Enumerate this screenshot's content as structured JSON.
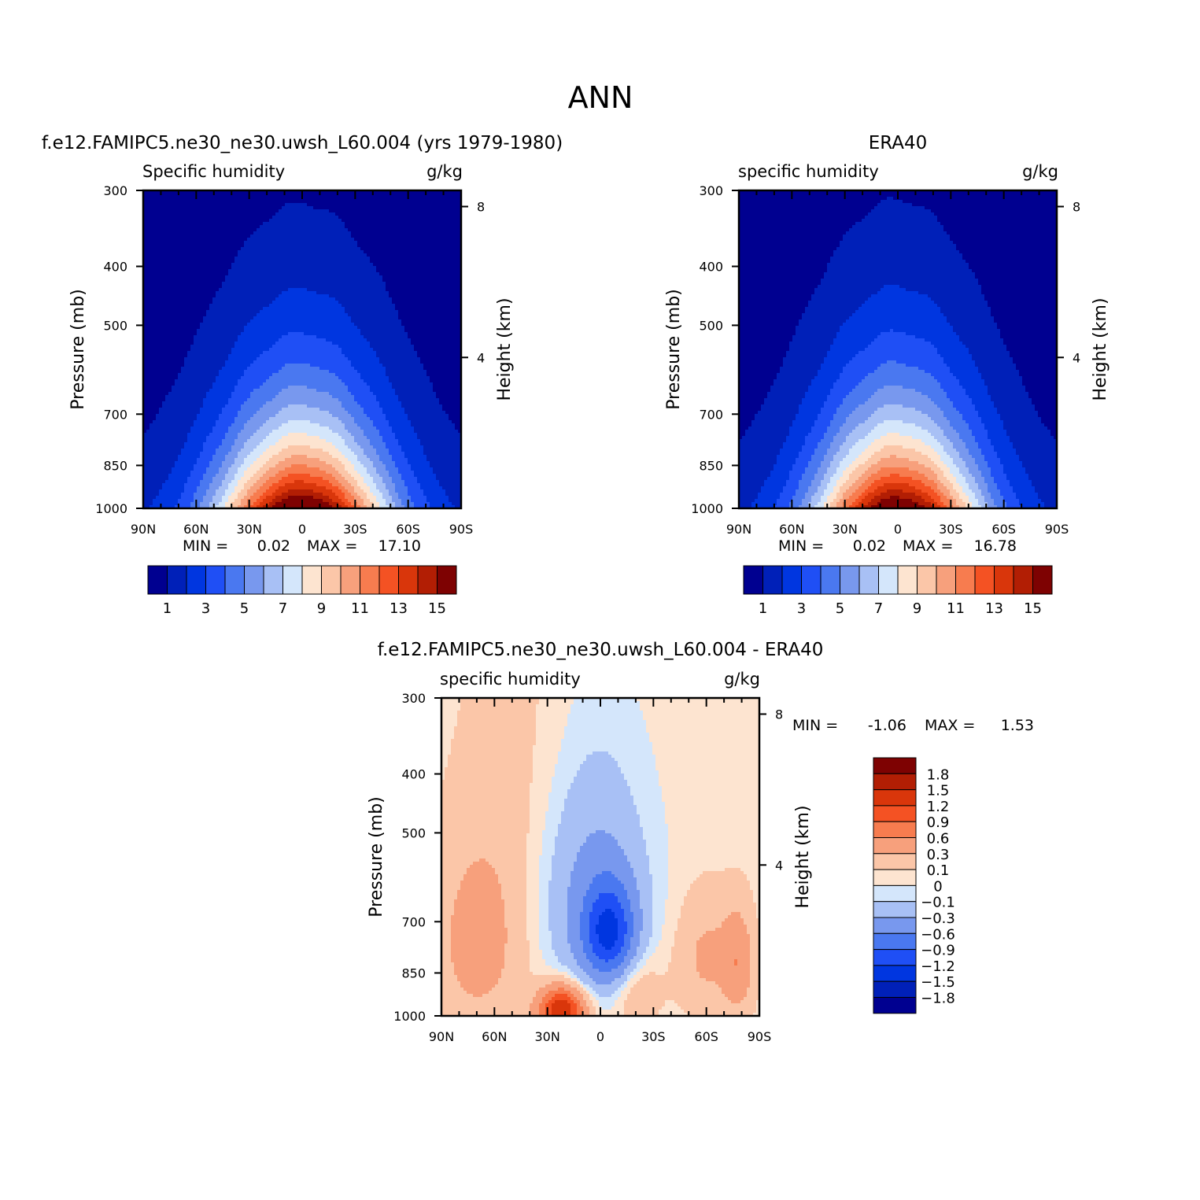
{
  "page_title": "ANN",
  "chart_data": [
    {
      "id": "model",
      "type": "heatmap",
      "title": "f.e12.FAMIPC5.ne30_ne30.uwsh_L60.004 (yrs 1979-1980)",
      "left_label": "Specific humidity",
      "units": "g/kg",
      "ylabel": "Pressure (mb)",
      "ylabel_right": "Height (km)",
      "xticks": [
        "90N",
        "60N",
        "30N",
        "0",
        "30S",
        "60S",
        "90S"
      ],
      "yticks": [
        "300",
        "400",
        "500",
        "700",
        "850",
        "1000"
      ],
      "yticks_right": [
        "8",
        "4"
      ],
      "xlim": [
        90,
        -90
      ],
      "ylim": [
        1000,
        300
      ],
      "min_label": "MIN =",
      "min_value": "0.02",
      "max_label": "MAX =",
      "max_value": "17.10",
      "stats": {
        "min": 0.02,
        "max": 17.1
      },
      "peak": 17.1,
      "peak_lat": 0,
      "width": 34,
      "scale_height": 2.75,
      "colorbar": {
        "orientation": "horizontal",
        "labels": [
          "1",
          "3",
          "5",
          "7",
          "9",
          "11",
          "13",
          "15"
        ],
        "levels": [
          1,
          2,
          3,
          4,
          5,
          6,
          7,
          8,
          9,
          10,
          11,
          12,
          13,
          14,
          15
        ],
        "colors": [
          "#000090",
          "#0020b8",
          "#0036e0",
          "#1f4ff5",
          "#4a78f0",
          "#7898ee",
          "#a8c0f5",
          "#d4e6fb",
          "#fde4d0",
          "#fbc6a8",
          "#f7a07c",
          "#f77c4f",
          "#f45223",
          "#d9360b",
          "#b21e04",
          "#7e0202"
        ]
      }
    },
    {
      "id": "obs",
      "type": "heatmap",
      "title": "ERA40",
      "left_label": "specific humidity",
      "units": "g/kg",
      "ylabel": "Pressure (mb)",
      "ylabel_right": "Height (km)",
      "xticks": [
        "90N",
        "60N",
        "30N",
        "0",
        "30S",
        "60S",
        "90S"
      ],
      "yticks": [
        "300",
        "400",
        "500",
        "700",
        "850",
        "1000"
      ],
      "yticks_right": [
        "8",
        "4"
      ],
      "xlim": [
        90,
        -90
      ],
      "ylim": [
        1000,
        300
      ],
      "min_label": "MIN =",
      "min_value": "0.02",
      "max_label": "MAX =",
      "max_value": "16.78",
      "stats": {
        "min": 0.02,
        "max": 16.78
      },
      "peak": 16.78,
      "peak_lat": 0,
      "width": 33,
      "scale_height": 2.7,
      "colorbar": {
        "orientation": "horizontal",
        "labels": [
          "1",
          "3",
          "5",
          "7",
          "9",
          "11",
          "13",
          "15"
        ],
        "levels": [
          1,
          2,
          3,
          4,
          5,
          6,
          7,
          8,
          9,
          10,
          11,
          12,
          13,
          14,
          15
        ],
        "colors": [
          "#000090",
          "#0020b8",
          "#0036e0",
          "#1f4ff5",
          "#4a78f0",
          "#7898ee",
          "#a8c0f5",
          "#d4e6fb",
          "#fde4d0",
          "#fbc6a8",
          "#f7a07c",
          "#f77c4f",
          "#f45223",
          "#d9360b",
          "#b21e04",
          "#7e0202"
        ]
      }
    },
    {
      "id": "diff",
      "type": "heatmap",
      "title": "f.e12.FAMIPC5.ne30_ne30.uwsh_L60.004 - ERA40",
      "left_label": "specific humidity",
      "units": "g/kg",
      "ylabel": "Pressure (mb)",
      "ylabel_right": "Height (km)",
      "xticks": [
        "90N",
        "60N",
        "30N",
        "0",
        "30S",
        "60S",
        "90S"
      ],
      "yticks": [
        "300",
        "400",
        "500",
        "700",
        "850",
        "1000"
      ],
      "yticks_right": [
        "8",
        "4"
      ],
      "xlim": [
        90,
        -90
      ],
      "ylim": [
        1000,
        300
      ],
      "min_label": "MIN =",
      "min_value": "-1.06",
      "max_label": "MAX =",
      "max_value": "1.53",
      "stats": {
        "min": -1.06,
        "max": 1.53
      },
      "colorbar": {
        "orientation": "vertical",
        "labels": [
          "1.8",
          "1.5",
          "1.2",
          "0.9",
          "0.6",
          "0.3",
          "0.1",
          "0",
          "-0.1",
          "-0.3",
          "-0.6",
          "-0.9",
          "-1.2",
          "-1.5",
          "-1.8"
        ],
        "levels": [
          -1.8,
          -1.5,
          -1.2,
          -0.9,
          -0.6,
          -0.3,
          -0.1,
          0,
          0.1,
          0.3,
          0.6,
          0.9,
          1.2,
          1.5,
          1.8
        ],
        "colors": [
          "#000090",
          "#0020b8",
          "#0036e0",
          "#1f4ff5",
          "#4a78f0",
          "#7898ee",
          "#a8c0f5",
          "#d4e6fb",
          "#fde4d0",
          "#fbc6a8",
          "#f7a07c",
          "#f77c4f",
          "#f45223",
          "#d9360b",
          "#b21e04",
          "#7e0202"
        ]
      },
      "features": [
        {
          "lat": -5,
          "p": 730,
          "amp": -1.1,
          "sx": 10,
          "sp": 90
        },
        {
          "lat": 5,
          "p": 640,
          "amp": -0.45,
          "sx": 22,
          "sp": 200
        },
        {
          "lat": 22,
          "p": 980,
          "amp": 1.5,
          "sx": 9,
          "sp": 60
        },
        {
          "lat": 70,
          "p": 760,
          "amp": 0.35,
          "sx": 16,
          "sp": 180
        },
        {
          "lat": -60,
          "p": 800,
          "amp": 0.3,
          "sx": 12,
          "sp": 120
        },
        {
          "lat": -78,
          "p": 820,
          "amp": 0.45,
          "sx": 6,
          "sp": 110
        },
        {
          "lat": -20,
          "p": 900,
          "amp": 0.25,
          "sx": 10,
          "sp": 90
        },
        {
          "lat": 45,
          "p": 500,
          "amp": 0.12,
          "sx": 25,
          "sp": 300
        }
      ]
    }
  ]
}
